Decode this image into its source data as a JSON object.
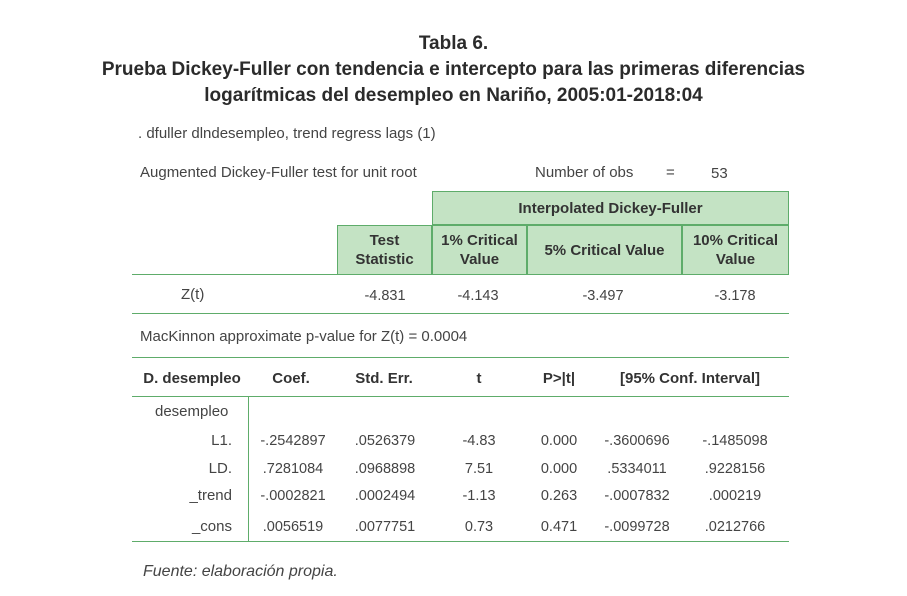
{
  "title": {
    "line1": "Tabla 6.",
    "line2": "Prueba Dickey-Fuller con tendencia e intercepto para las primeras diferencias",
    "line3": "logarítmicas del desempleo en Nariño, 2005:01-2018:04"
  },
  "command": ".  dfuller dlndesempleo, trend regress lags (1)",
  "test_heading": "Augmented Dickey-Fuller test for unit root",
  "obs": {
    "label": "Number of obs",
    "eq": "=",
    "value": "53"
  },
  "adf_table": {
    "group_header": "Interpolated Dickey-Fuller",
    "columns": [
      "Test Statistic",
      "1% Critical Value",
      "5% Critical Value",
      "10% Critical Value"
    ],
    "row_label": "Z(t)",
    "values": [
      "-4.831",
      "-4.143",
      "-3.497",
      "-3.178"
    ]
  },
  "pvalue_text": "MacKinnon approximate p-value for Z(t) = 0.0004",
  "reg_table": {
    "headers": [
      "D. desempleo",
      "Coef.",
      "Std. Err.",
      "t",
      "P>|t|",
      "[95% Conf. Interval]"
    ],
    "group_label": "desempleo",
    "rows": [
      {
        "label": "L1.",
        "values": [
          "-.2542897",
          ".0526379",
          "-4.83",
          "0.000",
          "-.3600696",
          "-.1485098"
        ]
      },
      {
        "label": "LD.",
        "values": [
          ".7281084",
          ".0968898",
          "7.51",
          "0.000",
          ".5334011",
          ".9228156"
        ]
      },
      {
        "label": "_trend",
        "values": [
          "-.0002821",
          ".0002494",
          "-1.13",
          "0.263",
          "-.0007832",
          ".000219"
        ]
      },
      {
        "label": "_cons",
        "values": [
          ".0056519",
          ".0077751",
          "0.73",
          "0.471",
          "-.0099728",
          ".0212766"
        ]
      }
    ]
  },
  "footer": "Fuente: elaboración propia."
}
